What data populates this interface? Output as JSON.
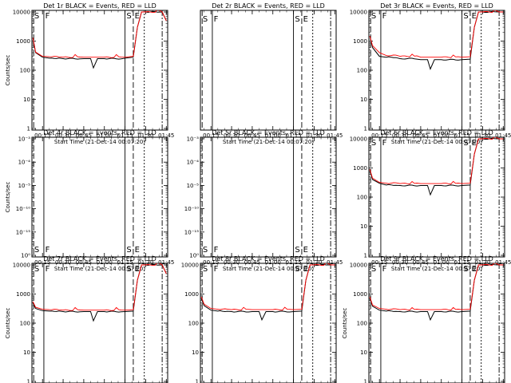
{
  "chart_data": [
    {
      "type": "line",
      "title": "Det 1r BLACK = Events, RED = LLD",
      "ylabel": "Counts/sec",
      "xlabel": "Start Time (21-Dec-14 00:07:20)",
      "xticks": [
        "00:15",
        "00:30",
        "00:45",
        "01:00",
        "01:15",
        "01:30",
        "01:45"
      ],
      "yticks": [
        "1",
        "10",
        "100",
        "1000",
        "10000"
      ],
      "ylim": [
        1,
        10000
      ],
      "y_scale": "log",
      "has_data": true,
      "markers": [
        "S",
        "F",
        "S",
        "E"
      ],
      "dip": true,
      "rise_end": true,
      "series": [
        {
          "name": "Events",
          "color": "#000000",
          "x": [
            "00:08",
            "00:10",
            "00:15",
            "00:20",
            "00:30",
            "00:45",
            "00:50",
            "00:52",
            "00:55",
            "01:00",
            "01:15",
            "01:21",
            "01:24",
            "01:27",
            "01:30",
            "01:42",
            "01:45"
          ],
          "values": [
            1300,
            400,
            280,
            260,
            250,
            250,
            250,
            120,
            250,
            250,
            260,
            280,
            3000,
            10000,
            10000,
            10000,
            5000
          ]
        },
        {
          "name": "LLD",
          "color": "#ff0000",
          "x": [
            "00:08",
            "00:10",
            "00:15",
            "00:20",
            "00:30",
            "00:45",
            "00:50",
            "00:52",
            "00:55",
            "01:00",
            "01:15",
            "01:21",
            "01:24",
            "01:27",
            "01:30",
            "01:42",
            "01:45"
          ],
          "values": [
            1300,
            420,
            300,
            290,
            280,
            280,
            280,
            280,
            280,
            280,
            280,
            300,
            3000,
            10000,
            10000,
            10000,
            5000
          ]
        }
      ]
    },
    {
      "type": "line",
      "title": "Det 2r BLACK = Events, RED = LLD",
      "ylabel": "",
      "xlabel": "Start Time (21-Dec-14 00:07:20)",
      "xticks": [
        "00:15",
        "00:30",
        "00:45",
        "01:00",
        "01:15",
        "01:30",
        "01:45"
      ],
      "yticks": [],
      "ylim": [
        1,
        10000
      ],
      "y_scale": "log",
      "has_data": false,
      "markers": [
        "S",
        "F",
        "S",
        "E"
      ],
      "dip": false,
      "rise_end": false,
      "series": []
    },
    {
      "type": "line",
      "title": "Det 3r BLACK = Events, RED = LLD",
      "ylabel": "",
      "xlabel": "Start Time (21-Dec-14 00:07:20)",
      "xticks": [
        "00:15",
        "00:30",
        "00:45",
        "01:00",
        "01:15",
        "01:30",
        "01:45"
      ],
      "yticks": [
        "1",
        "10",
        "100",
        "1000",
        "10000"
      ],
      "ylim": [
        1,
        10000
      ],
      "y_scale": "log",
      "has_data": true,
      "markers": [
        "S",
        "F",
        "S",
        "E"
      ],
      "dip": true,
      "rise_end": true,
      "series": [
        {
          "name": "Events",
          "color": "#000000",
          "x": [
            "00:08",
            "00:10",
            "00:15",
            "00:20",
            "00:30",
            "00:45",
            "00:50",
            "00:52",
            "00:55",
            "01:00",
            "01:15",
            "01:21",
            "01:24",
            "01:27",
            "01:30",
            "01:42",
            "01:45"
          ],
          "values": [
            1500,
            600,
            300,
            280,
            250,
            230,
            230,
            110,
            230,
            230,
            230,
            240,
            3000,
            10000,
            10000,
            10000,
            10000
          ]
        },
        {
          "name": "LLD",
          "color": "#ff0000",
          "x": [
            "00:08",
            "00:10",
            "00:15",
            "00:20",
            "00:30",
            "00:45",
            "00:50",
            "00:52",
            "00:55",
            "01:00",
            "01:15",
            "01:21",
            "01:24",
            "01:27",
            "01:30",
            "01:42",
            "01:45"
          ],
          "values": [
            1500,
            700,
            400,
            320,
            300,
            280,
            280,
            280,
            280,
            280,
            280,
            290,
            3000,
            10000,
            10000,
            10000,
            10000
          ]
        }
      ]
    },
    {
      "type": "line",
      "title": "Det 4r BLACK = Events, RED = LLD",
      "ylabel": "Counts/sec",
      "xlabel": "Start Time (21-Dec-14 00:07:20)",
      "xticks": [
        "00:15",
        "00:30",
        "00:45",
        "01:00",
        "01:15",
        "01:30",
        "01:45"
      ],
      "yticks": [
        "10⁰",
        "10⁻¹⁵",
        "10⁻¹⁰",
        "10⁻⁵",
        "10⁻⁴",
        "10⁻³"
      ],
      "ylim": [
        1,
        10000
      ],
      "y_scale": "log",
      "has_data": false,
      "markers": [
        "S",
        "F",
        "S",
        "E"
      ],
      "dip": false,
      "rise_end": false,
      "series": []
    },
    {
      "type": "line",
      "title": "Det 5r BLACK = Events, RED = LLD",
      "ylabel": "",
      "xlabel": "Start Time (21-Dec-14 00:07:20)",
      "xticks": [
        "00:15",
        "00:30",
        "00:45",
        "01:00",
        "01:15",
        "01:30",
        "01:45"
      ],
      "yticks": [
        "10⁰",
        "10⁻¹⁵",
        "10⁻¹⁰",
        "10⁻⁵",
        "10⁻⁴",
        "10⁻³"
      ],
      "ylim": [
        1,
        10000
      ],
      "y_scale": "log",
      "has_data": false,
      "markers": [
        "S",
        "F",
        "S",
        "E"
      ],
      "dip": false,
      "rise_end": false,
      "series": []
    },
    {
      "type": "line",
      "title": "Det 6r BLACK = Events, RED = LLD",
      "ylabel": "",
      "xlabel": "Start Time (21-Dec-14 00:07:20)",
      "xticks": [
        "00:15",
        "00:30",
        "00:45",
        "01:00",
        "01:15",
        "01:30",
        "01:45"
      ],
      "yticks": [
        "1",
        "10",
        "100",
        "1000",
        "10000"
      ],
      "ylim": [
        1,
        10000
      ],
      "y_scale": "log",
      "has_data": true,
      "markers": [
        "S",
        "F",
        "S",
        "E"
      ],
      "dip": true,
      "rise_end": true,
      "series": [
        {
          "name": "Events",
          "color": "#000000",
          "x": [
            "00:08",
            "00:10",
            "00:15",
            "00:20",
            "00:30",
            "00:45",
            "00:50",
            "00:52",
            "00:55",
            "01:00",
            "01:15",
            "01:21",
            "01:24",
            "01:27",
            "01:30",
            "01:42",
            "01:45"
          ],
          "values": [
            800,
            400,
            300,
            260,
            250,
            250,
            250,
            120,
            250,
            250,
            250,
            260,
            3000,
            10000,
            10000,
            10000,
            10000
          ]
        },
        {
          "name": "LLD",
          "color": "#ff0000",
          "x": [
            "00:08",
            "00:10",
            "00:15",
            "00:20",
            "00:30",
            "00:45",
            "00:50",
            "00:52",
            "00:55",
            "01:00",
            "01:15",
            "01:21",
            "01:24",
            "01:27",
            "01:30",
            "01:42",
            "01:45"
          ],
          "values": [
            900,
            450,
            320,
            300,
            290,
            290,
            290,
            290,
            290,
            290,
            290,
            300,
            3000,
            10000,
            10000,
            10000,
            10000
          ]
        }
      ]
    },
    {
      "type": "line",
      "title": "Det 7r BLACK = Events, RED = LLD",
      "ylabel": "Counts/sec",
      "xlabel": "Start Time (21-Dec-14 00:07:20)",
      "xticks": [
        "00:15",
        "00:30",
        "00:45",
        "01:00",
        "01:15",
        "01:30",
        "01:45"
      ],
      "yticks": [
        "1",
        "10",
        "100",
        "1000",
        "10000"
      ],
      "ylim": [
        1,
        10000
      ],
      "y_scale": "log",
      "has_data": true,
      "markers": [
        "S",
        "F",
        "S",
        "E"
      ],
      "dip": true,
      "rise_end": true,
      "series": [
        {
          "name": "Events",
          "color": "#000000",
          "x": [
            "00:08",
            "00:10",
            "00:15",
            "00:20",
            "00:30",
            "00:45",
            "00:50",
            "00:52",
            "00:55",
            "01:00",
            "01:15",
            "01:21",
            "01:24",
            "01:27",
            "01:30",
            "01:42",
            "01:45"
          ],
          "values": [
            500,
            320,
            270,
            260,
            250,
            250,
            250,
            120,
            250,
            250,
            250,
            260,
            3000,
            10000,
            10000,
            10000,
            5000
          ]
        },
        {
          "name": "LLD",
          "color": "#ff0000",
          "x": [
            "00:08",
            "00:10",
            "00:15",
            "00:20",
            "00:30",
            "00:45",
            "00:50",
            "00:52",
            "00:55",
            "01:00",
            "01:15",
            "01:21",
            "01:24",
            "01:27",
            "01:30",
            "01:42",
            "01:45"
          ],
          "values": [
            550,
            350,
            300,
            290,
            280,
            280,
            280,
            280,
            280,
            280,
            280,
            290,
            3000,
            10000,
            10000,
            10000,
            5000
          ]
        }
      ]
    },
    {
      "type": "line",
      "title": "Det 8r BLACK = Events, RED = LLD",
      "ylabel": "",
      "xlabel": "Start Time (21-Dec-14 00:07:20)",
      "xticks": [
        "00:15",
        "00:30",
        "00:45",
        "01:00",
        "01:15",
        "01:30",
        "01:45"
      ],
      "yticks": [
        "1",
        "10",
        "100",
        "1000",
        "10000"
      ],
      "ylim": [
        1,
        10000
      ],
      "y_scale": "log",
      "has_data": true,
      "markers": [
        "S",
        "F",
        "S",
        "E"
      ],
      "dip": true,
      "rise_end": true,
      "series": [
        {
          "name": "Events",
          "color": "#000000",
          "x": [
            "00:08",
            "00:10",
            "00:15",
            "00:20",
            "00:30",
            "00:45",
            "00:50",
            "00:52",
            "00:55",
            "01:00",
            "01:15",
            "01:21",
            "01:24",
            "01:27",
            "01:30",
            "01:42",
            "01:45"
          ],
          "values": [
            700,
            400,
            280,
            260,
            250,
            250,
            250,
            130,
            250,
            250,
            250,
            260,
            3000,
            10000,
            10000,
            10000,
            10000
          ]
        },
        {
          "name": "LLD",
          "color": "#ff0000",
          "x": [
            "00:08",
            "00:10",
            "00:15",
            "00:20",
            "00:30",
            "00:45",
            "00:50",
            "00:52",
            "00:55",
            "01:00",
            "01:15",
            "01:21",
            "01:24",
            "01:27",
            "01:30",
            "01:42",
            "01:45"
          ],
          "values": [
            800,
            450,
            320,
            300,
            290,
            290,
            290,
            290,
            290,
            290,
            290,
            300,
            3000,
            10000,
            10000,
            10000,
            10000
          ]
        }
      ]
    },
    {
      "type": "line",
      "title": "Det 9r BLACK = Events, RED = LLD",
      "ylabel": "Counts/sec",
      "xlabel": "Start Time (21-Dec-14 00:07:20)",
      "xticks": [
        "00:15",
        "00:30",
        "00:45",
        "01:00",
        "01:15",
        "01:30",
        "01:45"
      ],
      "yticks": [
        "1",
        "10",
        "100",
        "1000",
        "10000"
      ],
      "ylim": [
        1,
        10000
      ],
      "y_scale": "log",
      "has_data": true,
      "markers": [
        "S",
        "F",
        "S",
        "E"
      ],
      "dip": true,
      "rise_end": true,
      "series": [
        {
          "name": "Events",
          "color": "#000000",
          "x": [
            "00:08",
            "00:10",
            "00:15",
            "00:20",
            "00:30",
            "00:45",
            "00:50",
            "00:52",
            "00:55",
            "01:00",
            "01:15",
            "01:21",
            "01:24",
            "01:27",
            "01:30",
            "01:42",
            "01:45"
          ],
          "values": [
            700,
            380,
            280,
            260,
            250,
            250,
            250,
            130,
            250,
            250,
            250,
            260,
            3000,
            10000,
            10000,
            10000,
            10000
          ]
        },
        {
          "name": "LLD",
          "color": "#ff0000",
          "x": [
            "00:08",
            "00:10",
            "00:15",
            "00:20",
            "00:30",
            "00:45",
            "00:50",
            "00:52",
            "00:55",
            "01:00",
            "01:15",
            "01:21",
            "01:24",
            "01:27",
            "01:30",
            "01:42",
            "01:45"
          ],
          "values": [
            800,
            420,
            320,
            300,
            290,
            290,
            290,
            290,
            290,
            290,
            290,
            300,
            3000,
            10000,
            10000,
            10000,
            10000
          ]
        }
      ]
    }
  ]
}
